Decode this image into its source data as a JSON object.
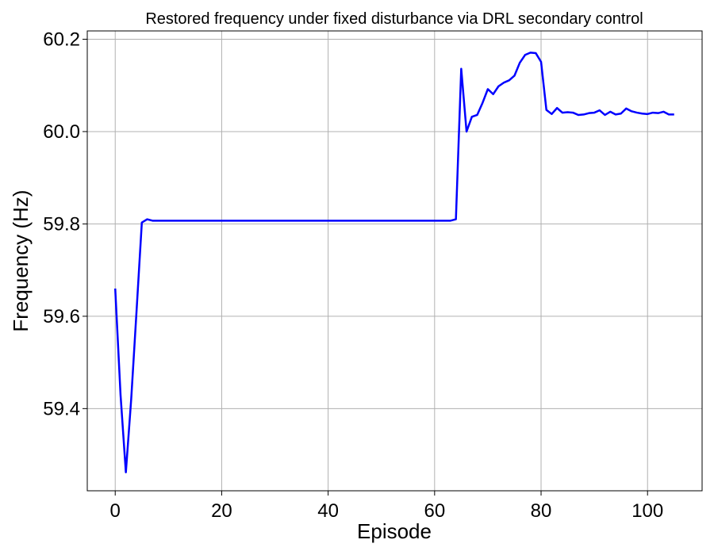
{
  "chart_data": {
    "type": "line",
    "title": "Restored frequency under fixed disturbance via DRL secondary control",
    "xlabel": "Episode",
    "ylabel": "Frequency (Hz)",
    "xlim": [
      -5.25,
      110.25
    ],
    "ylim": [
      59.222,
      60.218
    ],
    "xticks": [
      0,
      20,
      40,
      60,
      80,
      100
    ],
    "xtick_labels": [
      "0",
      "20",
      "40",
      "60",
      "80",
      "100"
    ],
    "yticks": [
      59.4,
      59.6,
      59.8,
      60.0,
      60.2
    ],
    "ytick_labels": [
      "59.4",
      "59.6",
      "59.8",
      "60.0",
      "60.2"
    ],
    "grid": true,
    "line_color": "#0000ff",
    "series": [
      {
        "x": [
          0,
          1,
          2,
          3,
          4,
          5,
          6,
          7,
          8,
          9,
          10,
          11,
          12,
          13,
          14,
          15,
          16,
          17,
          18,
          19,
          20,
          21,
          22,
          23,
          24,
          25,
          26,
          27,
          28,
          29,
          30,
          31,
          32,
          33,
          34,
          35,
          36,
          37,
          38,
          39,
          40,
          41,
          42,
          43,
          44,
          45,
          46,
          47,
          48,
          49,
          50,
          51,
          52,
          53,
          54,
          55,
          56,
          57,
          58,
          59,
          60,
          61,
          62,
          63,
          64,
          65,
          66,
          67,
          68,
          69,
          70,
          71,
          72,
          73,
          74,
          75,
          76,
          77,
          78,
          79,
          80,
          81,
          82,
          83,
          84,
          85,
          86,
          87,
          88,
          89,
          90,
          91,
          92,
          93,
          94,
          95,
          96,
          97,
          98,
          99,
          100,
          101,
          102,
          103,
          104,
          105
        ],
        "y": [
          59.66,
          59.43,
          59.262,
          59.42,
          59.61,
          59.803,
          59.81,
          59.807,
          59.807,
          59.807,
          59.807,
          59.807,
          59.807,
          59.807,
          59.807,
          59.807,
          59.807,
          59.807,
          59.807,
          59.807,
          59.807,
          59.807,
          59.807,
          59.807,
          59.807,
          59.807,
          59.807,
          59.807,
          59.807,
          59.807,
          59.807,
          59.807,
          59.807,
          59.807,
          59.807,
          59.807,
          59.807,
          59.807,
          59.807,
          59.807,
          59.807,
          59.807,
          59.807,
          59.807,
          59.807,
          59.807,
          59.807,
          59.807,
          59.807,
          59.807,
          59.807,
          59.807,
          59.807,
          59.807,
          59.807,
          59.807,
          59.807,
          59.807,
          59.807,
          59.807,
          59.807,
          59.807,
          59.807,
          59.807,
          59.81,
          60.136,
          60.0,
          60.032,
          60.036,
          60.062,
          60.092,
          60.081,
          60.098,
          60.106,
          60.111,
          60.121,
          60.149,
          60.166,
          60.171,
          60.17,
          60.151,
          60.047,
          60.038,
          60.051,
          60.041,
          60.042,
          60.041,
          60.036,
          60.037,
          60.04,
          60.041,
          60.046,
          60.036,
          60.043,
          60.037,
          60.039,
          60.05,
          60.044,
          60.041,
          60.039,
          60.038,
          60.041,
          60.04,
          60.043,
          60.037,
          60.037
        ]
      }
    ]
  }
}
